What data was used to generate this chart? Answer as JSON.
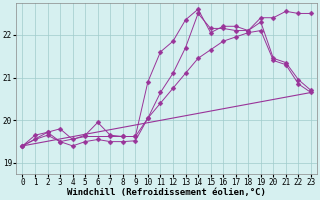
{
  "background_color": "#d6f0f0",
  "grid_color": "#a0cccc",
  "line_color": "#993399",
  "marker": "D",
  "xlabel": "Windchill (Refroidissement éolien,°C)",
  "xlabel_fontsize": 6.5,
  "tick_fontsize": 5.5,
  "xlim": [
    -0.5,
    23.5
  ],
  "ylim": [
    18.75,
    22.75
  ],
  "yticks": [
    19,
    20,
    21,
    22
  ],
  "xticks": [
    0,
    1,
    2,
    3,
    4,
    5,
    6,
    7,
    8,
    9,
    10,
    11,
    12,
    13,
    14,
    15,
    16,
    17,
    18,
    19,
    20,
    21,
    22,
    23
  ],
  "series": [
    {
      "x": [
        0,
        1,
        2,
        3,
        4,
        5,
        6,
        7,
        8,
        9,
        10,
        11,
        12,
        13,
        14,
        15,
        16,
        17,
        18,
        19,
        20,
        21,
        22,
        23
      ],
      "y": [
        19.4,
        19.65,
        19.72,
        19.8,
        19.55,
        19.65,
        19.95,
        19.65,
        19.62,
        19.62,
        20.9,
        21.6,
        21.85,
        22.35,
        22.6,
        22.05,
        22.2,
        22.2,
        22.1,
        22.4,
        22.4,
        22.55,
        22.5,
        22.5
      ]
    },
    {
      "x": [
        0,
        1,
        2,
        3,
        4,
        5,
        6,
        7,
        8,
        9,
        10,
        11,
        12,
        13,
        14,
        15,
        16,
        17,
        18,
        19,
        20,
        21,
        22,
        23
      ],
      "y": [
        19.4,
        19.55,
        19.65,
        19.5,
        19.4,
        19.5,
        19.55,
        19.5,
        19.5,
        19.52,
        20.05,
        20.65,
        21.1,
        21.7,
        22.5,
        22.15,
        22.15,
        22.1,
        22.1,
        22.3,
        21.45,
        21.35,
        20.95,
        20.7
      ]
    },
    {
      "x": [
        0,
        2,
        3,
        5,
        7,
        8,
        9,
        10,
        11,
        12,
        13,
        14,
        15,
        16,
        17,
        18,
        19,
        20,
        21,
        22,
        23
      ],
      "y": [
        19.4,
        19.72,
        19.5,
        19.62,
        19.62,
        19.62,
        19.62,
        20.05,
        20.4,
        20.75,
        21.1,
        21.45,
        21.65,
        21.85,
        21.95,
        22.05,
        22.1,
        21.4,
        21.3,
        20.85,
        20.65
      ]
    },
    {
      "x": [
        0,
        23
      ],
      "y": [
        19.4,
        20.65
      ]
    }
  ]
}
